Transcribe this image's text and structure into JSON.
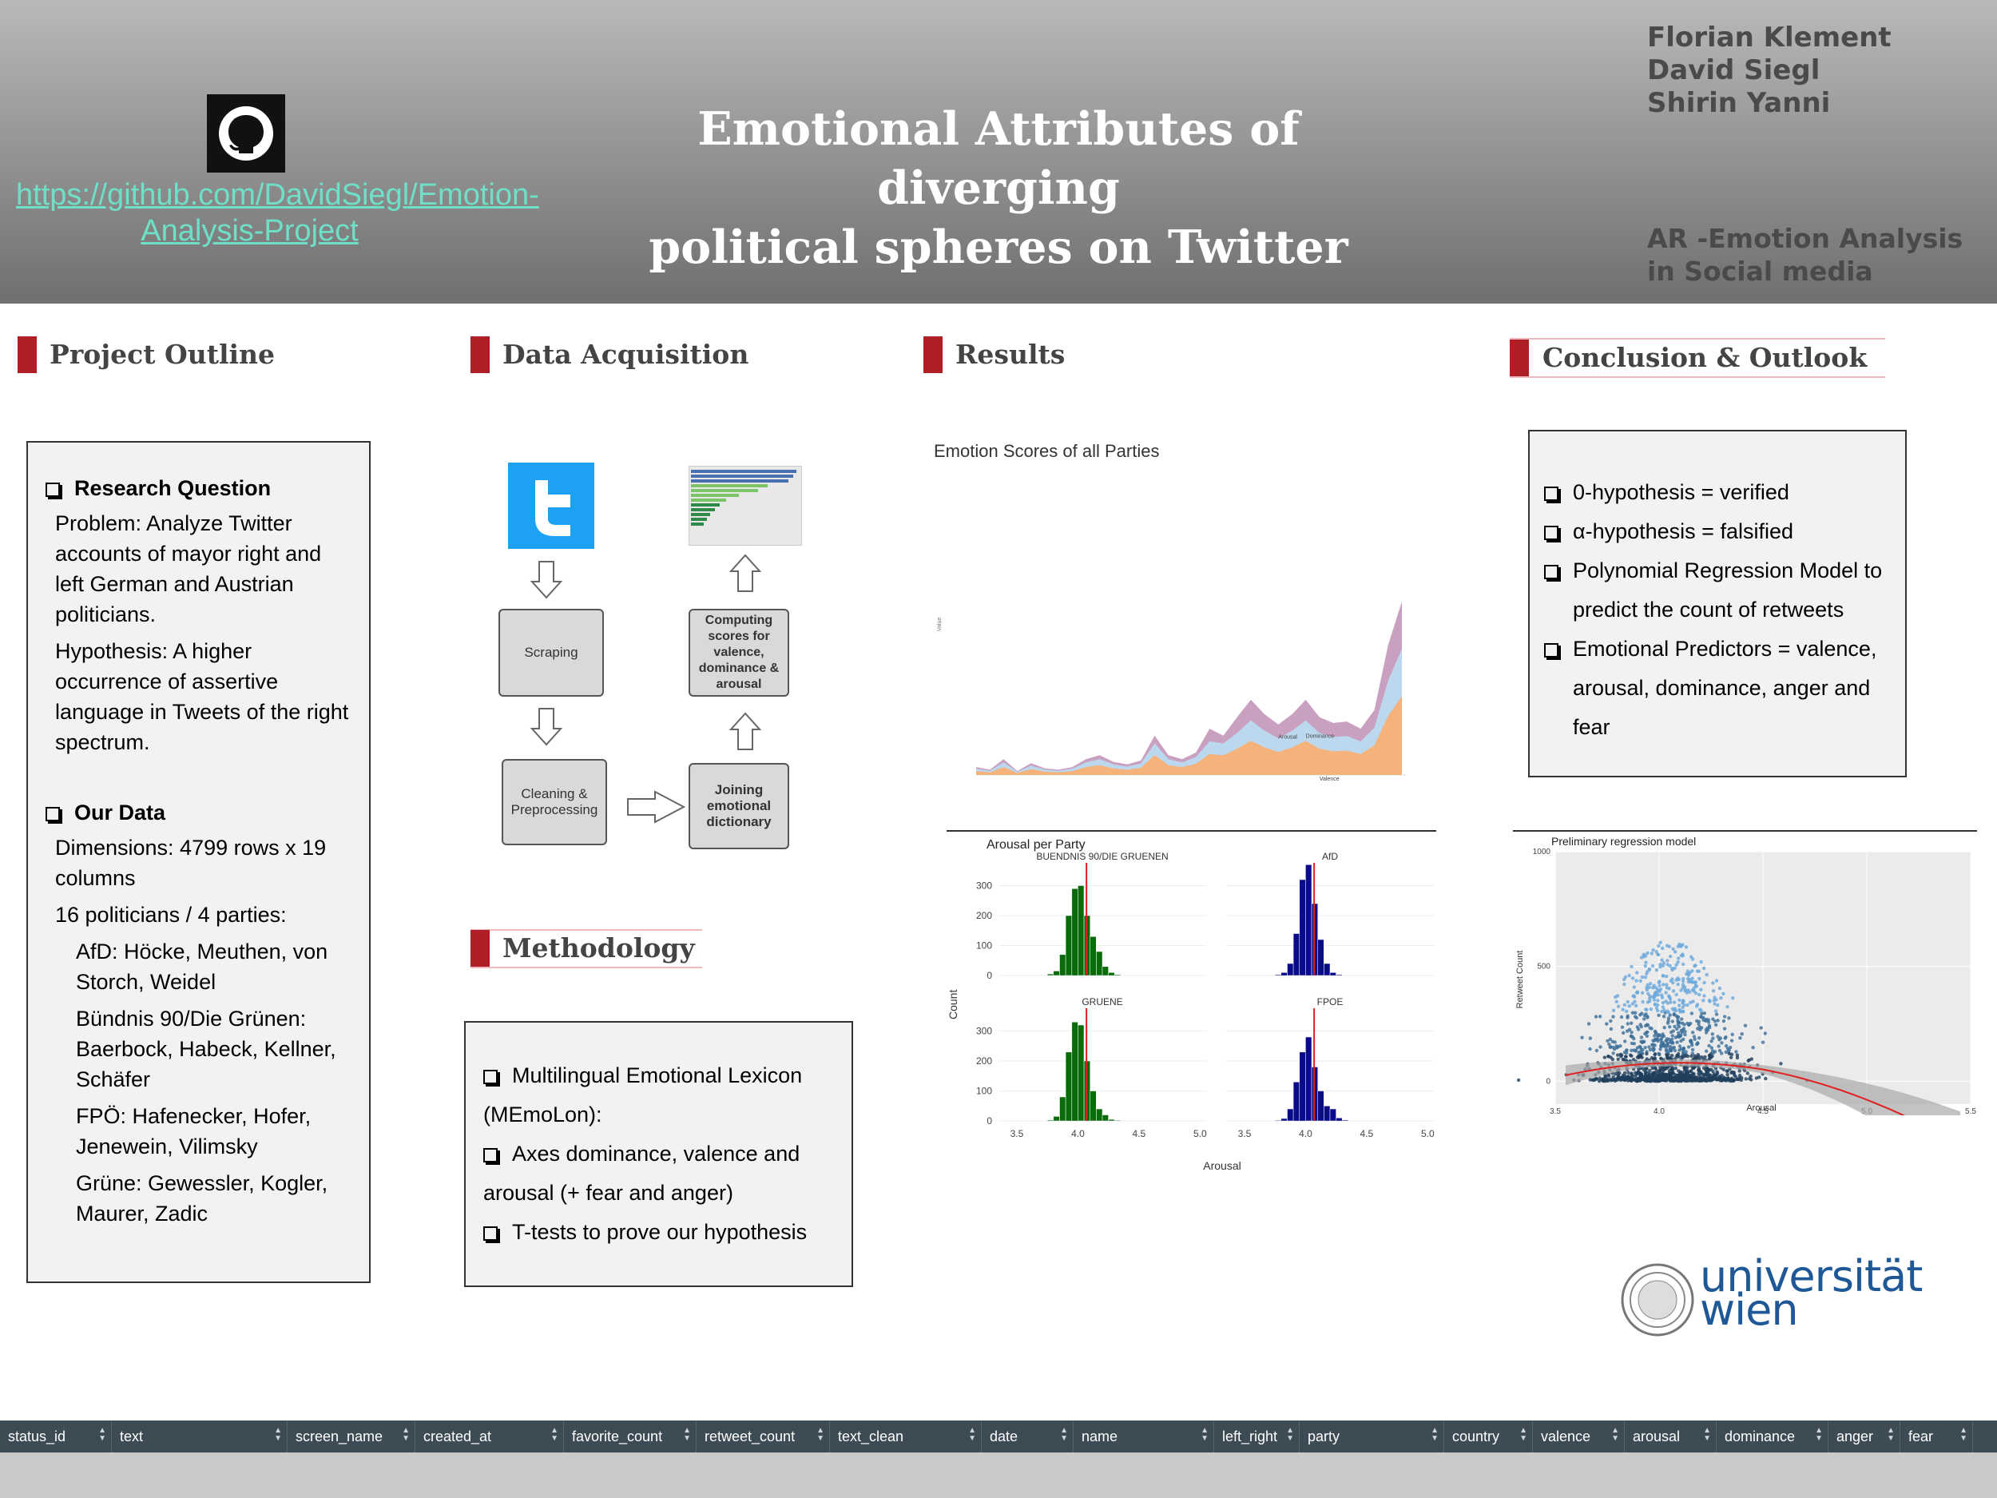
{
  "header": {
    "github_url": "https://github.com/DavidSiegl/Emotion-Analysis-Project",
    "title_line1": "Emotional Attributes of diverging",
    "title_line2": "political spheres on Twitter",
    "authors": [
      "Florian Klement",
      "David Siegl",
      "Shirin Yanni"
    ],
    "course": "AR -Emotion Analysis in Social media",
    "colors": {
      "accent": "#b01e25",
      "link": "#6fe0c8"
    }
  },
  "sections": {
    "outline": "Project Outline",
    "data": "Data Acquisition",
    "results": "Results",
    "conclusion": "Conclusion & Outlook",
    "methodology": "Methodology"
  },
  "outline": {
    "rq_heading": "Research Question",
    "problem": "Problem: Analyze Twitter accounts of mayor right and left German and Austrian politicians.",
    "hypothesis": "Hypothesis: A higher occurrence of assertive language in Tweets of the right spectrum.",
    "data_heading": "Our Data",
    "dimensions": "Dimensions: 4799 rows x 19 columns",
    "politicians": "16 politicians / 4 parties:",
    "parties": [
      "AfD: Höcke, Meuthen, von Storch, Weidel",
      "Bündnis 90/Die Grünen: Baerbock, Habeck, Kellner, Schäfer",
      "FPÖ: Hafenecker, Hofer, Jenewein, Vilimsky",
      "Grüne: Gewessler, Kogler, Maurer, Zadic"
    ]
  },
  "flow": {
    "scraping": "Scraping",
    "cleaning": "Cleaning & Preprocessing",
    "joining": "Joining emotional dictionary",
    "computing": "Computing scores for valence, dominance & arousal"
  },
  "methodology": [
    "Multilingual Emotional Lexicon (MEmoLon):",
    "Axes dominance, valence and arousal (+ fear and anger)",
    "T-tests to prove our hypothesis"
  ],
  "conclusion": [
    "0-hypothesis = verified",
    "α-hypothesis = falsified",
    "Polynomial Regression Model to predict the count of retweets",
    "Emotional Predictors = valence, arousal, dominance, anger and fear"
  ],
  "logo": {
    "line1": "universität",
    "line2": "wien"
  },
  "table_columns": [
    "status_id",
    "text",
    "screen_name",
    "created_at",
    "favorite_count",
    "retweet_count",
    "text_clean",
    "date",
    "name",
    "left_right",
    "party",
    "country",
    "valence",
    "arousal",
    "dominance",
    "anger",
    "fear"
  ],
  "chart_data": [
    {
      "type": "area",
      "title": "Emotion Scores of all Parties",
      "series": [
        {
          "name": "Arousal",
          "color": "#c9a0c0"
        },
        {
          "name": "Dominance",
          "color": "#bcd8ee"
        },
        {
          "name": "Valence",
          "color": "#f5b27a"
        }
      ],
      "stacked_values": {
        "valence": [
          60,
          40,
          120,
          30,
          90,
          50,
          40,
          60,
          120,
          150,
          100,
          80,
          110,
          300,
          150,
          120,
          170,
          320,
          300,
          400,
          520,
          420,
          350,
          420,
          520,
          400,
          360,
          370,
          320,
          450,
          900,
          1200
        ],
        "dominance": [
          60,
          40,
          120,
          30,
          90,
          50,
          40,
          60,
          120,
          150,
          100,
          80,
          110,
          300,
          150,
          120,
          170,
          320,
          300,
          400,
          520,
          420,
          350,
          420,
          520,
          400,
          360,
          370,
          320,
          450,
          900,
          1200
        ],
        "arousal": [
          60,
          40,
          120,
          30,
          90,
          50,
          40,
          60,
          120,
          150,
          100,
          80,
          110,
          300,
          150,
          120,
          170,
          320,
          300,
          400,
          520,
          420,
          350,
          420,
          520,
          400,
          360,
          370,
          320,
          450,
          900,
          1200
        ]
      },
      "ylim": [
        0,
        4500
      ]
    },
    {
      "type": "bar",
      "title": "Arousal per Party",
      "xlabel": "Arousal",
      "ylabel": "Count",
      "panels": [
        {
          "name": "BUENDNIS 90/DIE GRUENEN",
          "color": "#0a6b0a",
          "mean": 4.07,
          "bins": [
            3.8,
            3.85,
            3.9,
            3.95,
            4.0,
            4.05,
            4.1,
            4.15,
            4.2,
            4.25,
            4.3,
            4.35
          ],
          "counts": [
            5,
            15,
            70,
            200,
            290,
            300,
            200,
            130,
            80,
            30,
            10,
            3
          ]
        },
        {
          "name": "AfD",
          "color": "#0a0a8c",
          "mean": 4.07,
          "bins": [
            3.8,
            3.85,
            3.9,
            3.95,
            4.0,
            4.05,
            4.1,
            4.15,
            4.2,
            4.25,
            4.3,
            4.35
          ],
          "counts": [
            3,
            10,
            40,
            140,
            320,
            370,
            240,
            120,
            40,
            10,
            3,
            0
          ]
        },
        {
          "name": "GRUENE",
          "color": "#0a6b0a",
          "mean": 4.07,
          "bins": [
            3.8,
            3.85,
            3.9,
            3.95,
            4.0,
            4.05,
            4.1,
            4.15,
            4.2,
            4.25,
            4.3,
            4.35
          ],
          "counts": [
            3,
            15,
            80,
            230,
            330,
            320,
            200,
            100,
            40,
            20,
            5,
            2
          ]
        },
        {
          "name": "FPOE",
          "color": "#0a0a8c",
          "mean": 4.07,
          "bins": [
            3.8,
            3.85,
            3.9,
            3.95,
            4.0,
            4.05,
            4.1,
            4.15,
            4.2,
            4.25,
            4.3,
            4.35
          ],
          "counts": [
            2,
            8,
            40,
            130,
            230,
            280,
            180,
            100,
            50,
            40,
            10,
            3
          ]
        }
      ],
      "xticks": [
        "3.5",
        "4.0",
        "4.5",
        "5.0",
        "5.5"
      ],
      "yticks": [
        "0",
        "100",
        "200",
        "300"
      ]
    },
    {
      "type": "scatter",
      "title": "Preliminary regression model",
      "xlabel": "Arousal",
      "ylabel": "Retweet Count",
      "xlim": [
        3.5,
        5.5
      ],
      "ylim": [
        -100,
        1000
      ],
      "xticks": [
        "3.5",
        "4.0",
        "4.5",
        "5.0",
        "5.5"
      ],
      "yticks": [
        "0",
        "500",
        "1000"
      ]
    }
  ]
}
